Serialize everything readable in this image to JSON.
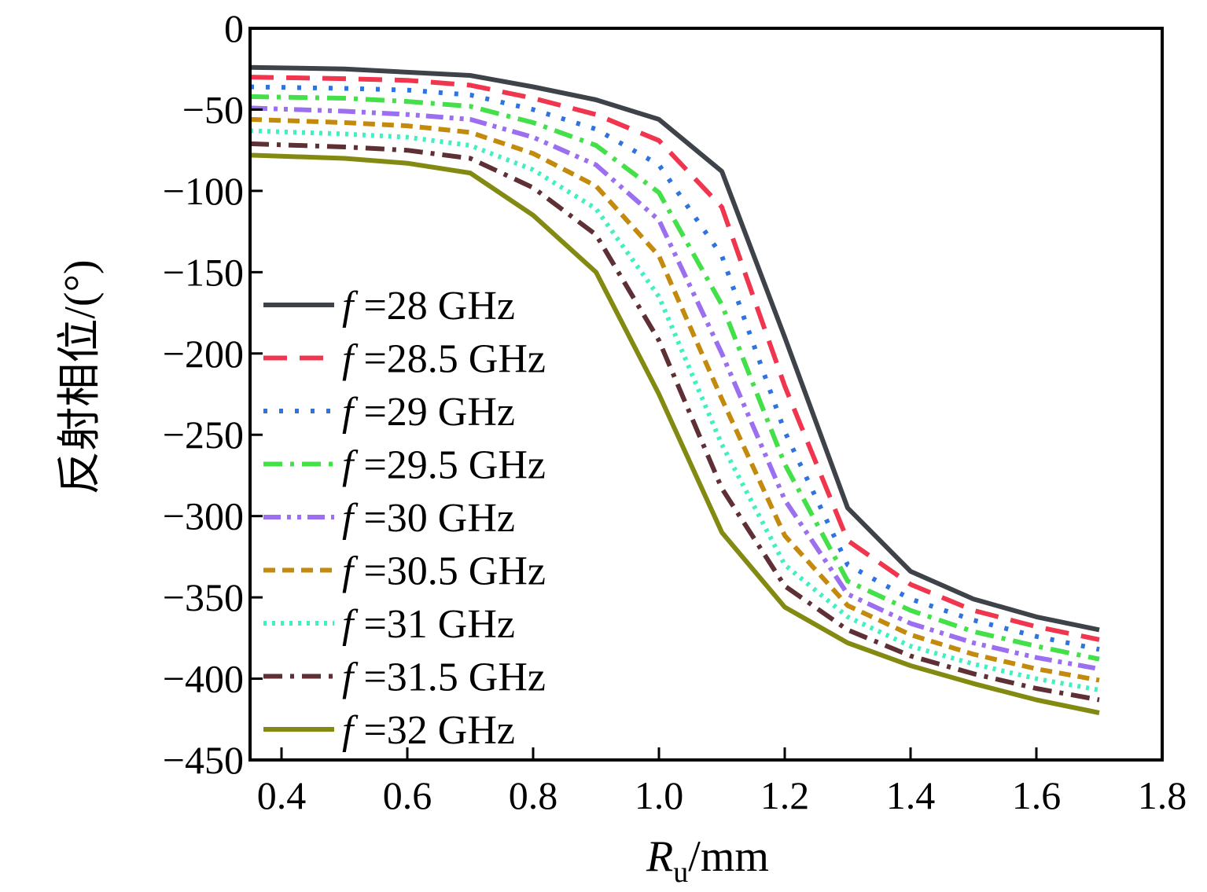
{
  "chart_data": {
    "type": "line",
    "xlabel": {
      "main": "R",
      "sub": "u",
      "unit": "/mm"
    },
    "ylabel": "反射相位/(°)",
    "xlim": [
      0.35,
      1.8
    ],
    "ylim": [
      -450,
      0
    ],
    "xticks": [
      "0.4",
      "0.6",
      "0.8",
      "1.0",
      "1.2",
      "1.4",
      "1.6",
      "1.8"
    ],
    "xtick_values": [
      0.4,
      0.6,
      0.8,
      1.0,
      1.2,
      1.4,
      1.6,
      1.8
    ],
    "yticks": [
      "0",
      "−50",
      "−100",
      "−150",
      "−200",
      "−250",
      "−300",
      "−350",
      "−400",
      "−450"
    ],
    "ytick_values": [
      0,
      -50,
      -100,
      -150,
      -200,
      -250,
      -300,
      -350,
      -400,
      -450
    ],
    "legend_position": "left",
    "legend_prefix": "f",
    "x": [
      0.35,
      0.5,
      0.6,
      0.7,
      0.8,
      0.9,
      1.0,
      1.1,
      1.2,
      1.3,
      1.4,
      1.5,
      1.6,
      1.7
    ],
    "series": [
      {
        "name": "=28 GHz",
        "color": "#3d4349",
        "dash": "solid",
        "values": [
          -24,
          -25,
          -27,
          -29,
          -36,
          -44,
          -56,
          -88,
          -190,
          -295,
          -334,
          -351,
          -362,
          -370
        ]
      },
      {
        "name": "=28.5 GHz",
        "color": "#f0364f",
        "dash": "dash",
        "values": [
          -30,
          -31,
          -32,
          -35,
          -43,
          -53,
          -69,
          -110,
          -220,
          -315,
          -342,
          -358,
          -368,
          -376
        ]
      },
      {
        "name": "=29 GHz",
        "color": "#2f73e0",
        "dash": "dot",
        "values": [
          -36,
          -37,
          -38,
          -41,
          -50,
          -62,
          -84,
          -140,
          -248,
          -330,
          -351,
          -364,
          -374,
          -382
        ]
      },
      {
        "name": "=29.5 GHz",
        "color": "#44e04a",
        "dash": "dashdot",
        "values": [
          -42,
          -43,
          -45,
          -48,
          -58,
          -72,
          -101,
          -170,
          -268,
          -340,
          -358,
          -371,
          -380,
          -388
        ]
      },
      {
        "name": "=30 GHz",
        "color": "#9b6ff0",
        "dash": "dashdotdot",
        "values": [
          -49,
          -51,
          -53,
          -56,
          -67,
          -84,
          -118,
          -200,
          -290,
          -348,
          -366,
          -378,
          -387,
          -394
        ]
      },
      {
        "name": "=30.5 GHz",
        "color": "#c48a0e",
        "dash": "shortdash",
        "values": [
          -56,
          -58,
          -60,
          -64,
          -77,
          -97,
          -140,
          -228,
          -312,
          -355,
          -373,
          -385,
          -394,
          -401
        ]
      },
      {
        "name": "=31 GHz",
        "color": "#3ff0c0",
        "dash": "densedot",
        "values": [
          -63,
          -65,
          -67,
          -72,
          -87,
          -111,
          -165,
          -256,
          -330,
          -362,
          -380,
          -391,
          -400,
          -407
        ]
      },
      {
        "name": "=31.5 GHz",
        "color": "#5e2f34",
        "dash": "dashdot",
        "values": [
          -71,
          -73,
          -75,
          -80,
          -98,
          -127,
          -192,
          -283,
          -343,
          -370,
          -386,
          -397,
          -406,
          -413
        ]
      },
      {
        "name": "=32 GHz",
        "color": "#828a12",
        "dash": "solid",
        "values": [
          -78,
          -80,
          -83,
          -89,
          -115,
          -150,
          -225,
          -310,
          -356,
          -378,
          -392,
          -403,
          -413,
          -421
        ]
      }
    ]
  }
}
